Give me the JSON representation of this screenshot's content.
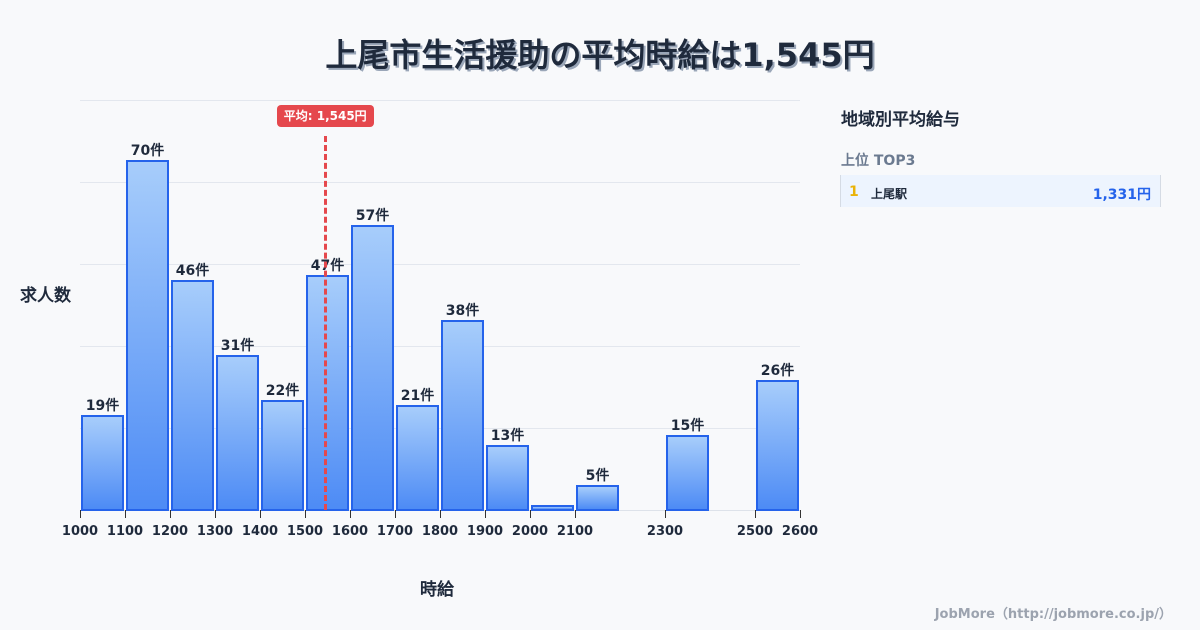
{
  "title": "上尾市生活援助の平均時給は1,545円",
  "chart_data": {
    "type": "bar",
    "title": "上尾市生活援助の平均時給は1,545円",
    "xlabel": "時給",
    "ylabel": "求人数",
    "bins": [
      {
        "from": 1000,
        "to": 1100,
        "value": 19,
        "label": "19件"
      },
      {
        "from": 1100,
        "to": 1200,
        "value": 70,
        "label": "70件"
      },
      {
        "from": 1200,
        "to": 1300,
        "value": 46,
        "label": "46件"
      },
      {
        "from": 1300,
        "to": 1400,
        "value": 31,
        "label": "31件"
      },
      {
        "from": 1400,
        "to": 1500,
        "value": 22,
        "label": "22件"
      },
      {
        "from": 1500,
        "to": 1600,
        "value": 47,
        "label": "47件"
      },
      {
        "from": 1600,
        "to": 1700,
        "value": 57,
        "label": "57件"
      },
      {
        "from": 1700,
        "to": 1800,
        "value": 21,
        "label": "21件"
      },
      {
        "from": 1800,
        "to": 1900,
        "value": 38,
        "label": "38件"
      },
      {
        "from": 1900,
        "to": 2000,
        "value": 13,
        "label": "13件"
      },
      {
        "from": 2000,
        "to": 2100,
        "value": 1,
        "label": ""
      },
      {
        "from": 2100,
        "to": 2200,
        "value": 5,
        "label": "5件"
      },
      {
        "from": 2300,
        "to": 2400,
        "value": 15,
        "label": "15件"
      },
      {
        "from": 2500,
        "to": 2600,
        "value": 26,
        "label": "26件"
      }
    ],
    "categories": [
      "1000-1100",
      "1100-1200",
      "1200-1300",
      "1300-1400",
      "1400-1500",
      "1500-1600",
      "1600-1700",
      "1700-1800",
      "1800-1900",
      "1900-2000",
      "2000-2100",
      "2100-2200",
      "2300-2400",
      "2500-2600"
    ],
    "values": [
      19,
      70,
      46,
      31,
      22,
      47,
      57,
      21,
      38,
      13,
      1,
      5,
      15,
      26
    ],
    "x_ticks": [
      1000,
      1100,
      1200,
      1300,
      1400,
      1500,
      1600,
      1700,
      1800,
      1900,
      2000,
      2100,
      2300,
      2500,
      2600
    ],
    "xlim": [
      1000,
      2600
    ],
    "ylim": [
      0,
      82
    ],
    "grid": true,
    "mean": {
      "value": 1545,
      "label": "平均: 1,545円",
      "color": "#e5484d"
    },
    "bar_color": "#2563eb"
  },
  "axes": {
    "xlabel": "時給",
    "ylabel": "求人数"
  },
  "panel": {
    "title": "地域別平均給与",
    "subtitle": "上位 TOP3",
    "ranking": [
      {
        "rank": "1",
        "name": "上尾駅",
        "value": "1,331円"
      }
    ]
  },
  "footer": "JobMore（http://jobmore.co.jp/）"
}
